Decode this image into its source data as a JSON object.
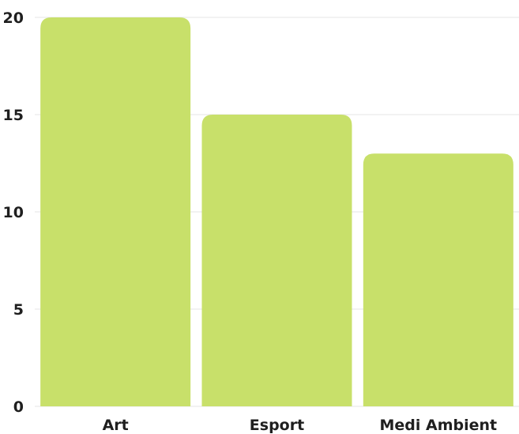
{
  "chart_data": {
    "type": "bar",
    "categories": [
      "Art",
      "Esport",
      "Medi Ambient"
    ],
    "values": [
      20,
      15,
      13
    ],
    "title": "",
    "xlabel": "",
    "ylabel": "",
    "ylim": [
      0,
      20
    ],
    "yticks": [
      "0",
      "5",
      "10",
      "15",
      "20"
    ],
    "grid": true,
    "legend": "none",
    "bar_color": "#c8e06a",
    "grid_color": "#e6e6e6",
    "text_color": "#1f1f1f"
  }
}
